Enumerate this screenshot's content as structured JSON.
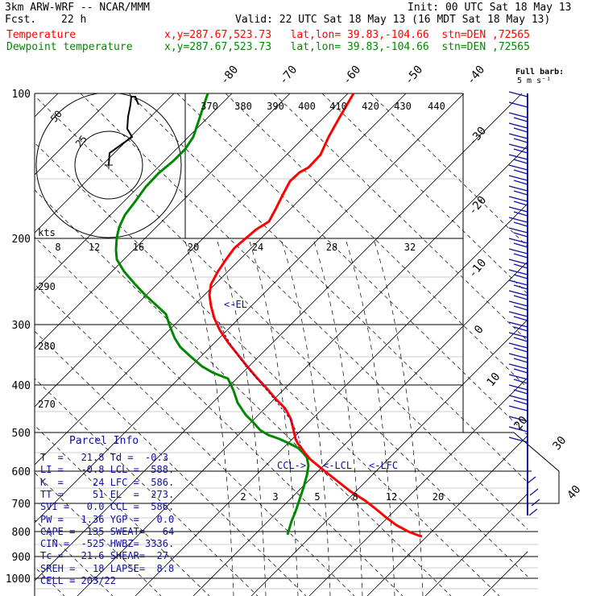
{
  "header": {
    "model": "3km ARW-WRF -- NCAR/MMM",
    "init": "Init: 00 UTC Sat 18 May 13",
    "fcst_label": "Fcst.",
    "fcst_value": "22 h",
    "valid": "Valid: 22 UTC Sat 18 May 13 (16 MDT Sat 18 May 13)",
    "temp_label": "Temperature",
    "temp_info": "x,y=287.67,523.73   lat,lon= 39.83,-104.66  stn=DEN ,72565",
    "dew_label": "Dewpoint temperature",
    "dew_info": "x,y=287.67,523.73   lat,lon= 39.83,-104.66  stn=DEN ,72565",
    "barb_legend": "Full barb:",
    "barb_legend2": "5 m s⁻¹"
  },
  "chart_data": {
    "type": "skew-t",
    "pressure_labels": [
      "100",
      "200",
      "300",
      "400",
      "500",
      "600",
      "700",
      "800",
      "900",
      "1000"
    ],
    "temp_diag_labels": [
      "-80",
      "-70",
      "-60",
      "-50",
      "-40",
      "-30",
      "-20",
      "-10",
      "0",
      "10",
      "20",
      "30",
      "40"
    ],
    "theta_labels": [
      "370",
      "380",
      "390",
      "400",
      "410",
      "420",
      "430",
      "440"
    ],
    "theta_left_labels": [
      "290",
      "280",
      "270"
    ],
    "mixing_upper_labels": [
      "8",
      "12",
      "16",
      "20",
      "24",
      "28",
      "32"
    ],
    "mixing_lower_labels": [
      "2",
      "3",
      "5",
      "8",
      "12",
      "20"
    ],
    "hodo_labels": [
      "kts",
      "25",
      "50"
    ],
    "markers": [
      "<-EL",
      "CCL->",
      "<-LCL",
      "<-LFC"
    ],
    "series": [
      {
        "name": "Temperature",
        "color": "#ff0000",
        "points": [
          [
            439,
            116
          ],
          [
            422,
            145
          ],
          [
            408,
            170
          ],
          [
            398,
            192
          ],
          [
            383,
            208
          ],
          [
            372,
            214
          ],
          [
            360,
            225
          ],
          [
            350,
            244
          ],
          [
            342,
            260
          ],
          [
            334,
            275
          ],
          [
            318,
            285
          ],
          [
            305,
            296
          ],
          [
            291,
            308
          ],
          [
            280,
            323
          ],
          [
            270,
            338
          ],
          [
            262,
            353
          ],
          [
            260,
            366
          ],
          [
            262,
            380
          ],
          [
            266,
            395
          ],
          [
            273,
            410
          ],
          [
            283,
            425
          ],
          [
            295,
            440
          ],
          [
            307,
            455
          ],
          [
            318,
            468
          ],
          [
            331,
            482
          ],
          [
            342,
            495
          ],
          [
            354,
            507
          ],
          [
            361,
            520
          ],
          [
            364,
            532
          ],
          [
            367,
            545
          ],
          [
            370,
            551
          ],
          [
            374,
            556
          ],
          [
            379,
            563
          ],
          [
            385,
            570
          ],
          [
            397,
            580
          ],
          [
            416,
            595
          ],
          [
            435,
            610
          ],
          [
            454,
            622
          ],
          [
            468,
            633
          ],
          [
            480,
            643
          ],
          [
            492,
            652
          ],
          [
            507,
            660
          ],
          [
            520,
            665
          ],
          [
            524,
            666
          ]
        ]
      },
      {
        "name": "Dewpoint temperature",
        "color": "#008800",
        "points": [
          [
            258,
            116
          ],
          [
            254,
            128
          ],
          [
            249,
            143
          ],
          [
            245,
            155
          ],
          [
            240,
            170
          ],
          [
            230,
            185
          ],
          [
            215,
            200
          ],
          [
            197,
            215
          ],
          [
            181,
            232
          ],
          [
            168,
            250
          ],
          [
            155,
            267
          ],
          [
            148,
            282
          ],
          [
            145,
            295
          ],
          [
            144,
            310
          ],
          [
            145,
            322
          ],
          [
            154,
            337
          ],
          [
            166,
            351
          ],
          [
            180,
            366
          ],
          [
            193,
            378
          ],
          [
            206,
            390
          ],
          [
            211,
            405
          ],
          [
            217,
            420
          ],
          [
            224,
            431
          ],
          [
            237,
            443
          ],
          [
            251,
            455
          ],
          [
            265,
            463
          ],
          [
            283,
            470
          ],
          [
            290,
            485
          ],
          [
            295,
            500
          ],
          [
            305,
            515
          ],
          [
            315,
            525
          ],
          [
            323,
            534
          ],
          [
            333,
            540
          ],
          [
            347,
            545
          ],
          [
            360,
            551
          ],
          [
            370,
            556
          ],
          [
            376,
            562
          ],
          [
            381,
            568
          ],
          [
            383,
            578
          ],
          [
            381,
            590
          ],
          [
            377,
            605
          ],
          [
            372,
            620
          ],
          [
            367,
            635
          ],
          [
            362,
            647
          ],
          [
            359,
            657
          ],
          [
            357,
            664
          ]
        ]
      }
    ]
  },
  "parcel_info": {
    "title": "Parcel Info",
    "rows": [
      "T  =   21.8 Td =  -0.3",
      "LI =   -0.8 LCL =  588.",
      "K  =     24 LFC =  586.",
      "TT =     51 EL  =  273.",
      "SVI =   0.0 CCL =  586.",
      "PW =   1.36 YGP =   0.0",
      "CAPE =  135 SWEAT=   64",
      "CIN =  -525 HWBZ= 3336.",
      "Tc =   21.6 SHEAR=  27.",
      "SREH =   18 LAPSE=  8.8",
      "CELL = 203/22"
    ]
  },
  "colors": {
    "temperature": "#ff0000",
    "dewpoint": "#008800",
    "wind": "#1010a0",
    "grid": "#000000"
  }
}
